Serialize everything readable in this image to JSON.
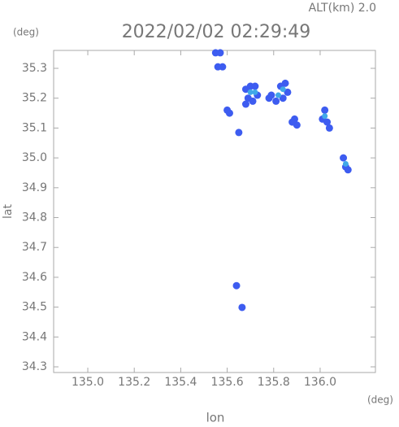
{
  "chart_data": {
    "type": "scatter",
    "header": "ALT(km) 2.0",
    "y_unit": "(deg)",
    "title": "2022/02/02 02:29:49",
    "ylabel": "lat",
    "xlabel": "lon",
    "x_unit": "(deg)",
    "xlim": [
      134.853,
      136.238
    ],
    "ylim": [
      34.281,
      35.36
    ],
    "xticks": [
      {
        "value": 135.0,
        "label": "135.0"
      },
      {
        "value": 135.2,
        "label": "135.2"
      },
      {
        "value": 135.4,
        "label": "135.4"
      },
      {
        "value": 135.6,
        "label": "135.6"
      },
      {
        "value": 135.8,
        "label": "135.8"
      },
      {
        "value": 136.0,
        "label": "136.0"
      }
    ],
    "yticks": [
      {
        "value": 34.3,
        "label": "34.3"
      },
      {
        "value": 34.4,
        "label": "34.4"
      },
      {
        "value": 34.5,
        "label": "34.5"
      },
      {
        "value": 34.6,
        "label": "34.6"
      },
      {
        "value": 34.7,
        "label": "34.7"
      },
      {
        "value": 34.8,
        "label": "34.8"
      },
      {
        "value": 34.9,
        "label": "34.9"
      },
      {
        "value": 35.0,
        "label": "35.0"
      },
      {
        "value": 35.1,
        "label": "35.1"
      },
      {
        "value": 35.2,
        "label": "35.2"
      },
      {
        "value": 35.3,
        "label": "35.3"
      }
    ],
    "series": [
      {
        "color": "#3d5cf0",
        "x": [
          135.55,
          135.57,
          135.56,
          135.58,
          135.6,
          135.61,
          135.65,
          135.68,
          135.7,
          135.72,
          135.69,
          135.71,
          135.73,
          135.68,
          135.79,
          135.81,
          135.83,
          135.85,
          135.86,
          135.84,
          135.78,
          135.89,
          135.9,
          135.88,
          136.02,
          136.01,
          136.03,
          136.04,
          136.1,
          136.11,
          136.12,
          135.64,
          135.664
        ],
        "y": [
          35.352,
          35.352,
          35.305,
          35.305,
          35.16,
          35.15,
          35.085,
          35.23,
          35.24,
          35.24,
          35.2,
          35.19,
          35.21,
          35.18,
          35.21,
          35.19,
          35.24,
          35.25,
          35.22,
          35.2,
          35.2,
          35.13,
          35.11,
          35.12,
          35.16,
          35.13,
          35.12,
          35.1,
          35.0,
          34.97,
          34.96,
          34.572,
          34.499
        ]
      },
      {
        "color": "#40a8e8",
        "x": [
          135.7,
          135.72,
          135.84,
          135.82,
          136.02,
          136.11
        ],
        "y": [
          35.22,
          35.22,
          35.23,
          35.21,
          35.14,
          34.98
        ]
      }
    ]
  }
}
